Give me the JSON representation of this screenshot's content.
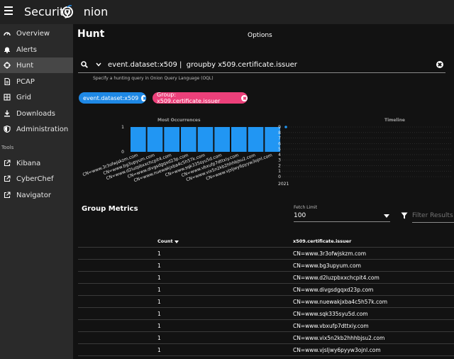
{
  "app": {
    "title_prefix": "Security",
    "title_suffix": "nion"
  },
  "sidebar": {
    "items": [
      {
        "label": "Overview",
        "icon": "dashboard-icon"
      },
      {
        "label": "Alerts",
        "icon": "bell-icon"
      },
      {
        "label": "Hunt",
        "icon": "crosshairs-icon",
        "active": true
      },
      {
        "label": "PCAP",
        "icon": "file-icon"
      },
      {
        "label": "Grid",
        "icon": "grid-icon"
      },
      {
        "label": "Downloads",
        "icon": "download-icon"
      },
      {
        "label": "Administration",
        "icon": "shield-icon"
      }
    ],
    "tools_label": "Tools",
    "tools": [
      {
        "label": "Kibana",
        "icon": "external-link-icon"
      },
      {
        "label": "CyberChef",
        "icon": "external-link-icon"
      },
      {
        "label": "Navigator",
        "icon": "external-link-icon"
      }
    ]
  },
  "main": {
    "title": "Hunt",
    "options_tab": "Options",
    "query": "event.dataset:x509 |  groupby x509.certificate.issuer",
    "query_hint": "Specify a hunting query in Onion Query Language (OQL)",
    "chips": [
      {
        "label": "event.dataset:x509",
        "color": "#1e88e5"
      },
      {
        "label": "Group: x509.certificate.issuer",
        "color": "#ec407a"
      }
    ]
  },
  "chart_data": [
    {
      "type": "bar",
      "title": "Most Occurrences",
      "categories": [
        "CN=www.3r3ofwjskzm.com",
        "CN=www.bg3upyum.com",
        "CN=www.d2luzpbxxchcpit4.com",
        "CN=www.divgsdgqxd23p.com",
        "CN=www.nuewakjxba4c5h57k.com",
        "CN=www.sqk335syu5d.com",
        "CN=www.vbxufp7dttxiy.com",
        "CN=www.vix5n2kb2hhhbjsu2.com",
        "CN=www.vjsljwy6pyyw3ojnl.com"
      ],
      "values": [
        1,
        1,
        1,
        1,
        1,
        1,
        1,
        1,
        1
      ],
      "yticks": [
        0,
        1
      ],
      "ylim": [
        0,
        1
      ],
      "color": "#2196f3"
    },
    {
      "type": "scatter",
      "title": "Timeline",
      "x": [
        "2021"
      ],
      "values": [
        9
      ],
      "yticks": [
        0,
        1,
        2,
        3,
        4,
        5,
        6,
        7,
        8,
        9
      ],
      "ylim": [
        0,
        9
      ],
      "color": "#2196f3"
    }
  ],
  "metrics": {
    "title": "Group Metrics",
    "fetch_label": "Fetch Limit",
    "fetch_value": "100",
    "filter_placeholder": "Filter Results",
    "columns": {
      "count": "Count",
      "issuer": "x509.certificate.issuer"
    },
    "rows": [
      {
        "count": "1",
        "issuer": "CN=www.3r3ofwjskzm.com"
      },
      {
        "count": "1",
        "issuer": "CN=www.bg3upyum.com"
      },
      {
        "count": "1",
        "issuer": "CN=www.d2luzpbxxchcpit4.com"
      },
      {
        "count": "1",
        "issuer": "CN=www.divgsdgqxd23p.com"
      },
      {
        "count": "1",
        "issuer": "CN=www.nuewakjxba4c5h57k.com"
      },
      {
        "count": "1",
        "issuer": "CN=www.sqk335syu5d.com"
      },
      {
        "count": "1",
        "issuer": "CN=www.vbxufp7dttxiy.com"
      },
      {
        "count": "1",
        "issuer": "CN=www.vix5n2kb2hhhbjsu2.com"
      },
      {
        "count": "1",
        "issuer": "CN=www.vjsljwy6pyyw3ojnl.com"
      }
    ]
  }
}
